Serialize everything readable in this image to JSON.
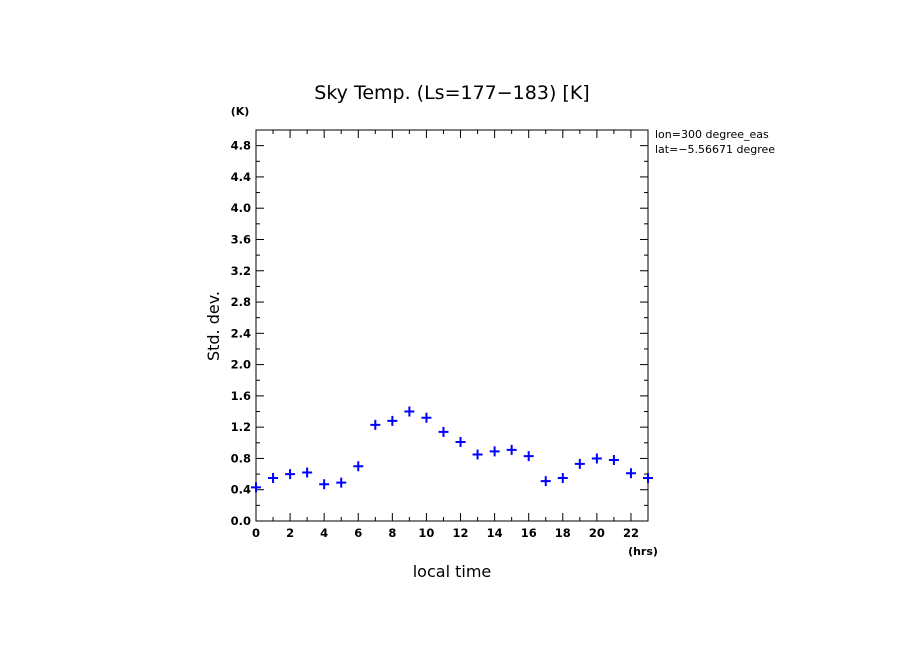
{
  "chart_data": {
    "type": "scatter",
    "title": "Sky Temp. (Ls=177−183) [K]",
    "xlabel": "local time",
    "ylabel": "Std. dev.",
    "x_unit": "(hrs)",
    "y_unit": "(K)",
    "xlim": [
      0,
      23
    ],
    "ylim": [
      0,
      5.0
    ],
    "x_ticks": [
      "0",
      "2",
      "4",
      "6",
      "8",
      "10",
      "12",
      "14",
      "16",
      "18",
      "20",
      "22"
    ],
    "y_ticks": [
      "0.0",
      "0.4",
      "0.8",
      "1.2",
      "1.6",
      "2.0",
      "2.4",
      "2.8",
      "3.2",
      "3.6",
      "4.0",
      "4.4",
      "4.8"
    ],
    "annotations": [
      "lon=300 degree_eas",
      "lat=−5.56671 degree"
    ],
    "marker": "+",
    "color": "#0000ff",
    "grid": false,
    "x": [
      0,
      1,
      2,
      3,
      4,
      5,
      6,
      7,
      8,
      9,
      10,
      11,
      12,
      13,
      14,
      15,
      16,
      17,
      18,
      19,
      20,
      21,
      22,
      23
    ],
    "values": [
      0.43,
      0.55,
      0.6,
      0.62,
      0.47,
      0.49,
      0.7,
      1.23,
      1.28,
      1.4,
      1.32,
      1.14,
      1.01,
      0.85,
      0.89,
      0.91,
      0.83,
      0.51,
      0.55,
      0.73,
      0.8,
      0.78,
      0.61,
      0.55
    ]
  }
}
